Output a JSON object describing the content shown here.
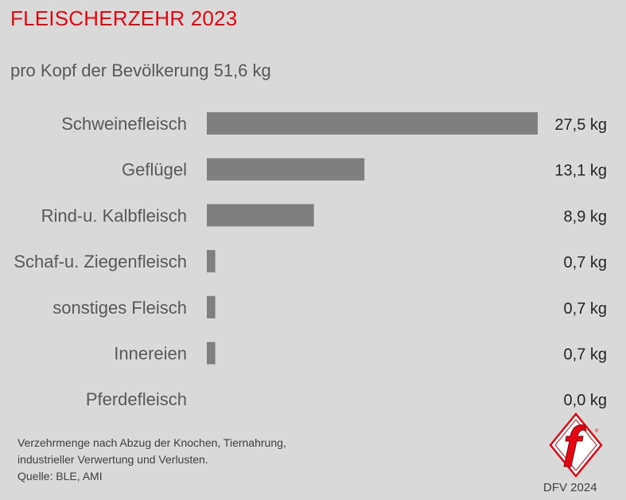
{
  "title": "FLEISCHERZEHR 2023",
  "subtitle": "pro Kopf der Bevölkerung 51,6 kg",
  "colors": {
    "title": "#e30613",
    "bar": "#7f7f7f",
    "background": "#d9d9d9",
    "logo": "#e30613"
  },
  "chart_data": {
    "type": "bar",
    "orientation": "horizontal",
    "categories": [
      "Schweinefleisch",
      "Geflügel",
      "Rind-u. Kalbfleisch",
      "Schaf-u. Ziegenfleisch",
      "sonstiges Fleisch",
      "Innereien",
      "Pferdefleisch"
    ],
    "values": [
      27.5,
      13.1,
      8.9,
      0.7,
      0.7,
      0.7,
      0.0
    ],
    "value_labels": [
      "27,5 kg",
      "13,1 kg",
      "8,9 kg",
      "0,7 kg",
      "0,7 kg",
      "0,7 kg",
      "0,0 kg"
    ],
    "unit": "kg",
    "xlim": [
      0,
      27.5
    ],
    "grid": false,
    "legend": false
  },
  "footnote": {
    "lines": [
      "Verzehrmenge nach Abzug der Knochen, Tiernahrung,",
      "industrieller Verwertung und Verlusten.",
      "Quelle: BLE, AMI"
    ]
  },
  "credit": "DFV 2024",
  "logo": {
    "icon": "dfv-f-logo-icon"
  }
}
